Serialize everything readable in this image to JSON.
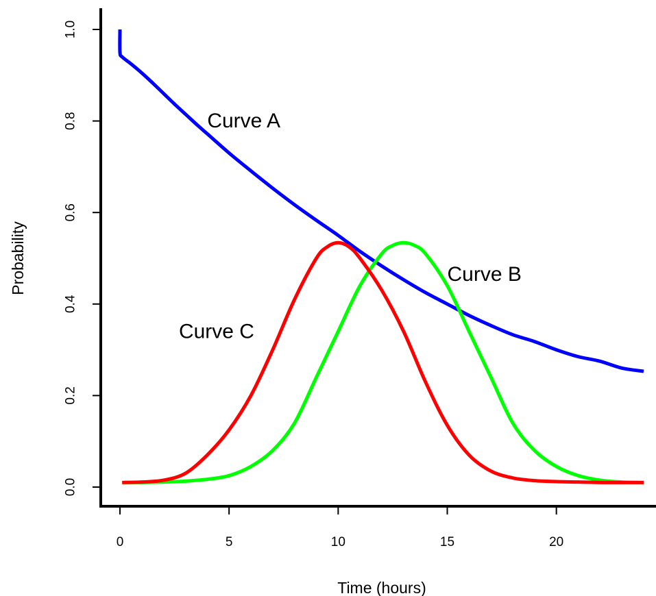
{
  "chart_data": {
    "type": "line",
    "xlabel": "Time (hours)",
    "ylabel": "Probability",
    "xlim": [
      0,
      24
    ],
    "ylim": [
      0,
      1
    ],
    "xticks": [
      0,
      5,
      10,
      15,
      20
    ],
    "yticks": [
      0.0,
      0.2,
      0.4,
      0.6,
      0.8,
      1.0
    ],
    "xtick_labels": [
      "0",
      "5",
      "10",
      "15",
      "20"
    ],
    "ytick_labels": [
      "0.0",
      "0.2",
      "0.4",
      "0.6",
      "0.8",
      "1.0"
    ],
    "grid": false,
    "legend": "none",
    "series": [
      {
        "color": "#0000ff",
        "x": [
          0,
          0,
          0.1,
          0.5,
          1,
          1.5,
          2,
          2.5,
          3,
          3.5,
          4,
          5,
          6,
          7,
          8,
          9,
          10,
          11,
          12,
          13,
          14,
          15,
          16,
          17,
          18,
          19,
          20,
          21,
          22,
          23,
          24
        ],
        "y": [
          1.0,
          0.95,
          0.94,
          0.925,
          0.905,
          0.883,
          0.86,
          0.837,
          0.815,
          0.793,
          0.772,
          0.73,
          0.691,
          0.653,
          0.617,
          0.583,
          0.55,
          0.515,
          0.483,
          0.453,
          0.425,
          0.4,
          0.375,
          0.353,
          0.333,
          0.318,
          0.3,
          0.285,
          0.275,
          0.26,
          0.253
        ]
      },
      {
        "color": "#00ff00",
        "x": [
          0.2,
          1,
          2,
          3,
          4,
          5,
          6,
          7,
          8,
          9,
          10,
          11,
          12,
          12.5,
          13,
          13.5,
          14,
          15,
          16,
          17,
          18,
          19,
          20,
          21,
          22,
          23,
          24
        ],
        "y": [
          0.01,
          0.01,
          0.011,
          0.013,
          0.017,
          0.025,
          0.045,
          0.08,
          0.14,
          0.24,
          0.34,
          0.44,
          0.51,
          0.528,
          0.534,
          0.528,
          0.51,
          0.44,
          0.34,
          0.24,
          0.14,
          0.08,
          0.045,
          0.025,
          0.015,
          0.011,
          0.01
        ]
      },
      {
        "color": "#ff0000",
        "x": [
          0.1,
          1,
          2,
          3,
          4,
          5,
          6,
          7,
          8,
          9,
          9.5,
          10,
          10.5,
          11,
          12,
          13,
          14,
          15,
          16,
          17,
          18,
          19,
          20,
          21,
          22,
          23,
          24
        ],
        "y": [
          0.01,
          0.011,
          0.015,
          0.03,
          0.07,
          0.125,
          0.2,
          0.3,
          0.41,
          0.5,
          0.525,
          0.534,
          0.525,
          0.5,
          0.43,
          0.34,
          0.23,
          0.135,
          0.07,
          0.035,
          0.02,
          0.014,
          0.012,
          0.011,
          0.01,
          0.01,
          0.01
        ]
      }
    ],
    "annotations": [
      {
        "text": "Curve A",
        "x": 4.0,
        "y": 0.8
      },
      {
        "text": "Curve B",
        "x": 15.0,
        "y": 0.465
      },
      {
        "text": "Curve C",
        "x": 2.7,
        "y": 0.34
      }
    ]
  }
}
